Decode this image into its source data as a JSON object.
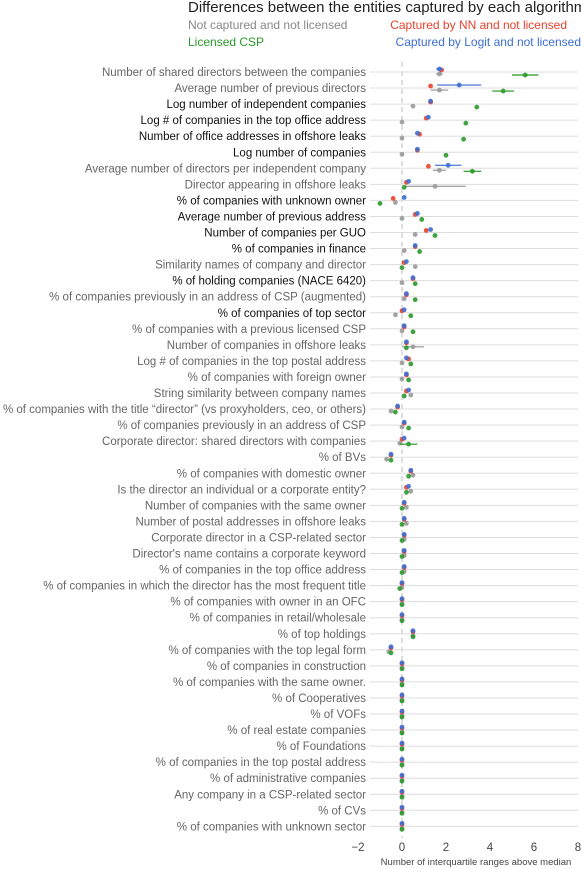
{
  "chart_data": {
    "type": "scatter",
    "title": "Differences between the entities captured by each algorithm",
    "xlabel": "Number of interquartile ranges above median",
    "xlim": [
      -2,
      8
    ],
    "xticks": [
      "−2",
      "0",
      "2",
      "4",
      "6",
      "8"
    ],
    "xtick_values": [
      -2,
      0,
      2,
      4,
      6,
      8
    ],
    "grid": "horizontal lines per row",
    "legend_placement": "top",
    "legend": [
      {
        "key": "gray",
        "label": "Not captured and not licensed",
        "color": "#999999"
      },
      {
        "key": "red",
        "label": "Captured by NN and not licensed",
        "color": "#e8412c"
      },
      {
        "key": "green",
        "label": "Licensed CSP",
        "color": "#2a9a2a"
      },
      {
        "key": "blue",
        "label": "Captured by Logit and not licensed",
        "color": "#3b6fd4"
      }
    ],
    "rows": [
      {
        "label": "Number of shared directors between the companies",
        "dark": false,
        "gray": 1.7,
        "red": 1.8,
        "green": 5.6,
        "blue": 1.7,
        "gray_err": 0.15,
        "green_err": 0.6,
        "blue_err": 0.15
      },
      {
        "label": "Average number of previous directors",
        "dark": false,
        "gray": 1.7,
        "red": 1.3,
        "green": 4.6,
        "blue": 2.6,
        "gray_err": 0.4,
        "green_err": 0.5,
        "blue_err": 1.0
      },
      {
        "label": "Log number of independent companies",
        "dark": true,
        "gray": 0.5,
        "red": 1.3,
        "green": 3.4,
        "blue": 1.3
      },
      {
        "label": "Log # of companies in the top office address",
        "dark": true,
        "gray": 0.0,
        "red": 1.1,
        "green": 2.9,
        "blue": 1.2
      },
      {
        "label": "Number of office addresses in offshore leaks",
        "dark": true,
        "gray": 0.0,
        "red": 0.8,
        "green": 2.8,
        "blue": 0.7
      },
      {
        "label": "Log number of companies",
        "dark": true,
        "gray": 0.0,
        "red": 0.7,
        "green": 2.0,
        "blue": 0.7
      },
      {
        "label": "Average number of directors per independent company",
        "dark": false,
        "gray": 1.7,
        "red": 1.2,
        "green": 3.2,
        "blue": 2.1,
        "gray_err": 0.3,
        "green_err": 0.4,
        "blue_err": 0.6
      },
      {
        "label": "Director appearing in offshore leaks",
        "dark": false,
        "gray": 1.5,
        "red": 0.2,
        "green": 0.1,
        "blue": 0.3,
        "gray_err": 1.4
      },
      {
        "label": "% of companies with unknown owner",
        "dark": true,
        "gray": -0.3,
        "red": -0.4,
        "green": -1.0,
        "blue": 0.1
      },
      {
        "label": "Average number of previous address",
        "dark": true,
        "gray": 0.0,
        "red": 0.6,
        "green": 0.9,
        "blue": 0.7
      },
      {
        "label": "Number of companies per GUO",
        "dark": true,
        "gray": 0.6,
        "red": 1.1,
        "green": 1.5,
        "blue": 1.3
      },
      {
        "label": "% of companies in finance",
        "dark": true,
        "gray": 0.1,
        "red": 0.6,
        "green": 0.8,
        "blue": 0.6
      },
      {
        "label": "Similarity names of company and director",
        "dark": false,
        "gray": 0.6,
        "red": 0.1,
        "green": 0.0,
        "blue": 0.2
      },
      {
        "label": "% of holding companies (NACE 6420)",
        "dark": true,
        "gray": 0.0,
        "red": 0.5,
        "green": 0.6,
        "blue": 0.5
      },
      {
        "label": "% of companies previously in an address of CSP (augmented)",
        "dark": false,
        "gray": 0.1,
        "red": 0.2,
        "green": 0.6,
        "blue": 0.2
      },
      {
        "label": "% of companies of top sector",
        "dark": true,
        "gray": -0.3,
        "red": 0.0,
        "green": 0.4,
        "blue": 0.1
      },
      {
        "label": "% of companies with a previous licensed CSP",
        "dark": false,
        "gray": 0.0,
        "red": 0.1,
        "green": 0.5,
        "blue": 0.1
      },
      {
        "label": "Number of companies in offshore leaks",
        "dark": false,
        "gray": 0.5,
        "red": 0.2,
        "green": 0.2,
        "blue": 0.2,
        "gray_err": 0.5
      },
      {
        "label": "Log # of companies in the top postal address",
        "dark": false,
        "gray": 0.0,
        "red": 0.3,
        "green": 0.4,
        "blue": 0.2
      },
      {
        "label": "% of companies with foreign owner",
        "dark": false,
        "gray": 0.0,
        "red": 0.2,
        "green": 0.3,
        "blue": 0.2
      },
      {
        "label": "String similarity between company names",
        "dark": false,
        "gray": 0.4,
        "red": 0.2,
        "green": 0.1,
        "blue": 0.3
      },
      {
        "label": "% of companies with the title “director” (vs proxyholders, ceo, or others)",
        "dark": false,
        "gray": -0.5,
        "red": -0.2,
        "green": -0.3,
        "blue": -0.2
      },
      {
        "label": "% of companies previously in an address of CSP",
        "dark": false,
        "gray": 0.0,
        "red": 0.1,
        "green": 0.3,
        "blue": 0.1
      },
      {
        "label": "Corporate director: shared directors with companies",
        "dark": false,
        "gray": -0.1,
        "red": 0.0,
        "green": 0.3,
        "blue": 0.1,
        "green_err": 0.4
      },
      {
        "label": "% of BVs",
        "dark": false,
        "gray": -0.7,
        "red": -0.5,
        "green": -0.5,
        "blue": -0.5
      },
      {
        "label": "% of companies with domestic owner",
        "dark": false,
        "gray": 0.5,
        "red": 0.4,
        "green": 0.3,
        "blue": 0.4
      },
      {
        "label": "Is the director an individual or a corporate entity?",
        "dark": false,
        "gray": 0.4,
        "red": 0.2,
        "green": 0.2,
        "blue": 0.3
      },
      {
        "label": "Number of companies with the same owner",
        "dark": false,
        "gray": 0.2,
        "red": 0.1,
        "green": 0.0,
        "blue": 0.1
      },
      {
        "label": "Number of postal addresses in offshore leaks",
        "dark": false,
        "gray": 0.2,
        "red": 0.1,
        "green": 0.0,
        "blue": 0.1
      },
      {
        "label": "Corporate director in a CSP-related sector",
        "dark": false,
        "gray": 0.1,
        "red": 0.1,
        "green": 0.0,
        "blue": 0.1
      },
      {
        "label": "Director's  name contains a corporate keyword",
        "dark": false,
        "gray": 0.1,
        "red": 0.1,
        "green": 0.0,
        "blue": 0.1
      },
      {
        "label": "% of companies in the top office address",
        "dark": false,
        "gray": 0.1,
        "red": 0.1,
        "green": 0.0,
        "blue": 0.1
      },
      {
        "label": "% of companies in which the director has the most frequent title",
        "dark": false,
        "gray": 0.0,
        "red": 0.0,
        "green": -0.1,
        "blue": 0.0
      },
      {
        "label": "% of companies with owner in an OFC",
        "dark": false,
        "gray": 0.0,
        "red": 0.0,
        "green": 0.0,
        "blue": 0.0
      },
      {
        "label": "% of companies in retail/wholesale",
        "dark": false,
        "gray": 0.0,
        "red": 0.0,
        "green": 0.0,
        "blue": 0.0
      },
      {
        "label": "% of top holdings",
        "dark": false,
        "gray": 0.5,
        "red": 0.5,
        "green": 0.5,
        "blue": 0.5
      },
      {
        "label": "% of companies with the top legal form",
        "dark": false,
        "gray": -0.6,
        "red": -0.5,
        "green": -0.5,
        "blue": -0.5
      },
      {
        "label": "% of companies in construction",
        "dark": false,
        "gray": 0.0,
        "red": 0.0,
        "green": 0.0,
        "blue": 0.0
      },
      {
        "label": "% of companies with the same owner.",
        "dark": false,
        "gray": 0.0,
        "red": 0.0,
        "green": 0.0,
        "blue": 0.0
      },
      {
        "label": "% of Cooperatives",
        "dark": false,
        "gray": 0.0,
        "red": 0.0,
        "green": 0.0,
        "blue": 0.0
      },
      {
        "label": "% of VOFs",
        "dark": false,
        "gray": 0.0,
        "red": 0.0,
        "green": 0.0,
        "blue": 0.0
      },
      {
        "label": "% of real estate companies",
        "dark": false,
        "gray": 0.0,
        "red": 0.0,
        "green": 0.0,
        "blue": 0.0
      },
      {
        "label": "% of Foundations",
        "dark": false,
        "gray": 0.0,
        "red": 0.0,
        "green": 0.0,
        "blue": 0.0
      },
      {
        "label": "% of companies in the top postal address",
        "dark": false,
        "gray": 0.0,
        "red": 0.0,
        "green": 0.0,
        "blue": 0.0
      },
      {
        "label": "% of administrative companies",
        "dark": false,
        "gray": 0.0,
        "red": 0.0,
        "green": 0.0,
        "blue": 0.0
      },
      {
        "label": "Any company in a CSP-related sector",
        "dark": false,
        "gray": 0.0,
        "red": 0.0,
        "green": 0.0,
        "blue": 0.0
      },
      {
        "label": "% of CVs",
        "dark": false,
        "gray": 0.0,
        "red": 0.0,
        "green": 0.0,
        "blue": 0.0
      },
      {
        "label": "% of companies with unknown sector",
        "dark": false,
        "gray": 0.0,
        "red": 0.0,
        "green": 0.0,
        "blue": 0.0
      }
    ]
  }
}
